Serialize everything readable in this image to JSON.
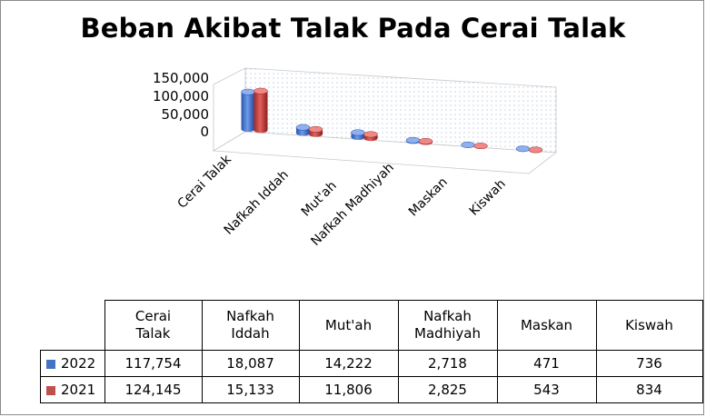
{
  "chart_data": {
    "type": "bar",
    "title": "Beban Akibat Talak Pada Cerai Talak",
    "categories": [
      "Cerai Talak",
      "Nafkah Iddah",
      "Mut'ah",
      "Nafkah Madhiyah",
      "Maskan",
      "Kiswah"
    ],
    "table_headers": [
      "Cerai Talak",
      "Nafkah Iddah",
      "Mut'ah",
      "Nafkah Madhiyah",
      "Maskan",
      "Kiswah"
    ],
    "series": [
      {
        "name": "2022",
        "color": "#4472C4",
        "values": [
          117754,
          18087,
          14222,
          2718,
          471,
          736
        ],
        "labels": [
          "117,754",
          "18,087",
          "14,222",
          "2,718",
          "471",
          "736"
        ]
      },
      {
        "name": "2021",
        "color": "#C0504D",
        "values": [
          124145,
          15133,
          11806,
          2825,
          543,
          834
        ],
        "labels": [
          "124,145",
          "15,133",
          "11,806",
          "2,825",
          "543",
          "834"
        ]
      }
    ],
    "yticks": [
      "150,000",
      "100,000",
      "50,000",
      "0"
    ],
    "ylim": [
      0,
      150000
    ],
    "legend": "data-table"
  }
}
